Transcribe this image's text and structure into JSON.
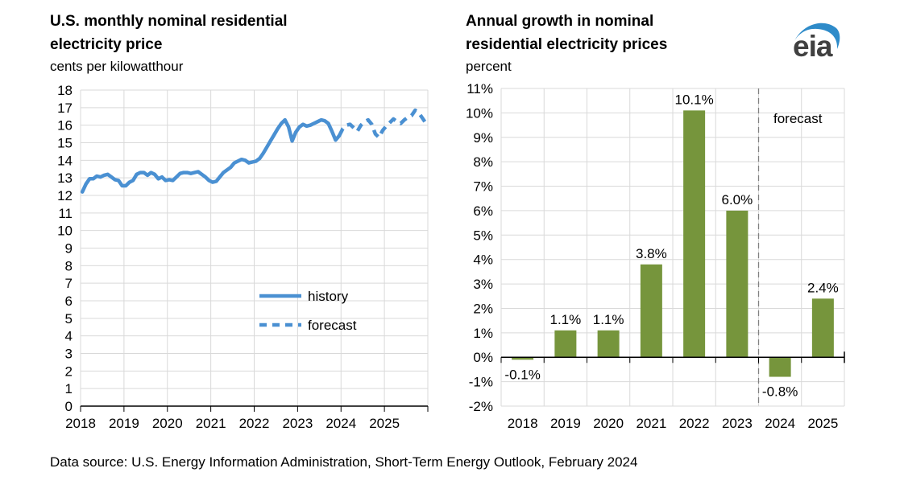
{
  "footer": {
    "text": "Data source: U.S. Energy Information Administration, Short-Term Energy Outlook, February 2024"
  },
  "logo": {
    "text": "eia",
    "swoosh_color": "#2E8BC9",
    "text_color": "#404040"
  },
  "colors": {
    "line_blue": "#4A90D2",
    "bar_green": "#76953C",
    "grid": "#D9D9D9",
    "axis": "#000000",
    "divider_gray": "#808080",
    "text": "#000000"
  },
  "chart_data": [
    {
      "id": "monthly-price-line",
      "type": "line",
      "title": "U.S. monthly nominal residential\nelectricity price",
      "unit_label": "cents per kilowatthour",
      "ylim": [
        0,
        18
      ],
      "y_tick_labels": [
        "0",
        "1",
        "2",
        "3",
        "4",
        "5",
        "6",
        "7",
        "8",
        "9",
        "10",
        "11",
        "12",
        "13",
        "14",
        "15",
        "16",
        "17",
        "18"
      ],
      "x_tick_labels": [
        "2018",
        "2019",
        "2020",
        "2021",
        "2022",
        "2023",
        "2024",
        "2025"
      ],
      "months_total": 96,
      "legend": [
        {
          "label": "history",
          "style": "solid"
        },
        {
          "label": "forecast",
          "style": "dashed"
        }
      ],
      "series": [
        {
          "name": "history",
          "start_month": 0,
          "values": [
            12.2,
            12.65,
            12.95,
            12.95,
            13.1,
            13.05,
            13.15,
            13.2,
            13.05,
            12.9,
            12.85,
            12.55,
            12.55,
            12.75,
            12.85,
            13.2,
            13.3,
            13.3,
            13.15,
            13.3,
            13.2,
            12.95,
            13.05,
            12.85,
            12.9,
            12.85,
            13.05,
            13.25,
            13.3,
            13.3,
            13.25,
            13.3,
            13.35,
            13.2,
            13.05,
            12.85,
            12.75,
            12.8,
            13.05,
            13.3,
            13.45,
            13.6,
            13.85,
            13.95,
            14.05,
            14.0,
            13.85,
            13.9,
            13.95,
            14.1,
            14.4,
            14.75,
            15.1,
            15.45,
            15.8,
            16.1,
            16.3,
            15.9,
            15.1,
            15.6,
            15.9,
            16.05,
            15.95,
            16.0,
            16.1,
            16.2,
            16.3,
            16.25,
            16.1,
            15.65,
            15.15,
            15.4
          ]
        },
        {
          "name": "forecast",
          "start_month": 71,
          "values": [
            15.4,
            15.8,
            16.0,
            16.05,
            15.85,
            15.65,
            16.0,
            16.2,
            16.3,
            16.05,
            15.5,
            15.3,
            15.7,
            15.95,
            16.15,
            16.35,
            16.2,
            16.1,
            16.3,
            16.45,
            16.55,
            16.85,
            16.7,
            16.4,
            16.1
          ]
        }
      ]
    },
    {
      "id": "annual-growth-bars",
      "type": "bar",
      "title": "Annual growth in nominal\nresidential electricity prices",
      "unit_label": "percent",
      "categories": [
        "2018",
        "2019",
        "2020",
        "2021",
        "2022",
        "2023",
        "2024",
        "2025"
      ],
      "values": [
        -0.1,
        1.1,
        1.1,
        3.8,
        10.1,
        6.0,
        -0.8,
        2.4
      ],
      "bar_labels": [
        "-0.1%",
        "1.1%",
        "1.1%",
        "3.8%",
        "10.1%",
        "6.0%",
        "-0.8%",
        "2.4%"
      ],
      "ylim": [
        -2,
        11
      ],
      "y_tick_labels": [
        "-2%",
        "-1%",
        "0%",
        "1%",
        "2%",
        "3%",
        "4%",
        "5%",
        "6%",
        "7%",
        "8%",
        "9%",
        "10%",
        "11%"
      ],
      "forecast_label": "forecast",
      "divider_before_category": "2024"
    }
  ]
}
